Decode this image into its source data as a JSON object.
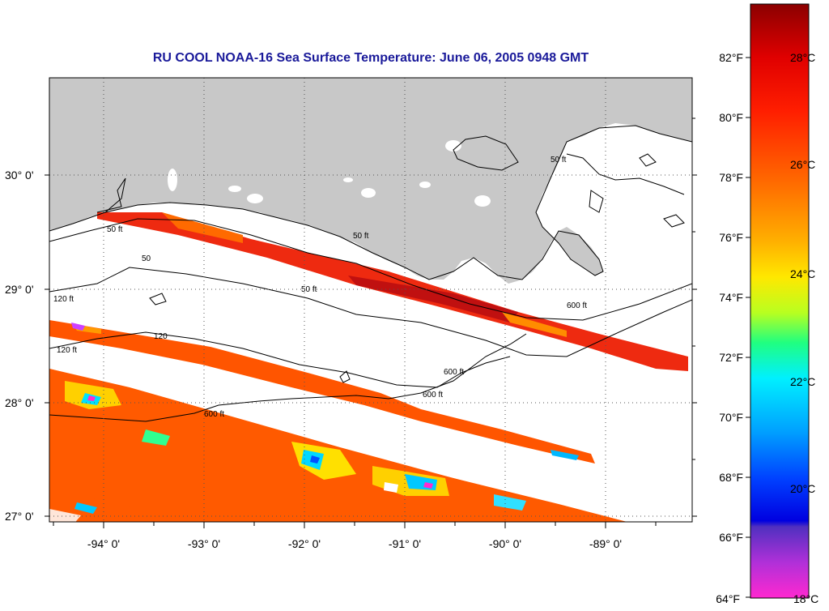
{
  "title": "RU COOL  NOAA-16  Sea Surface Temperature:  June 06, 2005 0948 GMT",
  "map": {
    "lat_labels": [
      "30° 0'",
      "29° 0'",
      "28° 0'",
      "27° 0'"
    ],
    "lon_labels": [
      "-94° 0'",
      "-93° 0'",
      "-92° 0'",
      "-91° 0'",
      "-90° 0'",
      "-89° 0'"
    ],
    "contour_labels": [
      "50 ft",
      "50",
      "120 ft",
      "120 ft",
      "50 ft",
      "600 ft",
      "600 ft",
      "600 ft",
      "50 ft",
      "120",
      "600 ft",
      "50 ft"
    ],
    "colors": {
      "land": "#c8c8c8",
      "no_data": "#ffffff",
      "grid": "#555555"
    }
  },
  "colorbar": {
    "f_labels": [
      "82°F",
      "80°F",
      "78°F",
      "76°F",
      "74°F",
      "72°F",
      "70°F",
      "68°F",
      "66°F",
      "64°F"
    ],
    "c_labels": [
      "28°C",
      "26°C",
      "24°C",
      "22°C",
      "20°C",
      "18°C"
    ],
    "gradient_colors": [
      "#8b0000",
      "#ff0000",
      "#ff6a00",
      "#ffd000",
      "#d8ff00",
      "#00ff66",
      "#00e6ff",
      "#0070ff",
      "#0000ff",
      "#5a28c8",
      "#ff28d0"
    ]
  }
}
